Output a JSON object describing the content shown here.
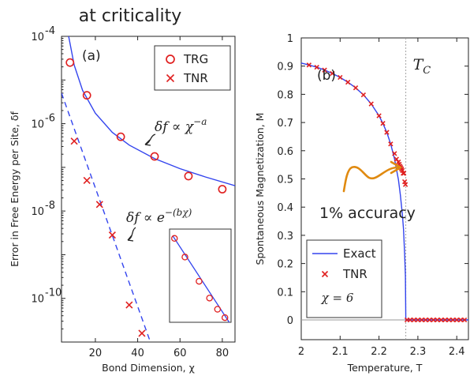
{
  "header_title": "at criticality",
  "colors": {
    "trg": "#e02020",
    "tnr": "#e02020",
    "fit": "#3344ee",
    "exact": "#3344ee",
    "orange": "#e08a10",
    "axis": "#222222",
    "box": "#333333"
  },
  "chart_data": [
    {
      "type": "scatter",
      "panel_label": "(a)",
      "xlabel": "Bond Dimension, χ",
      "ylabel": "Error in Free Energy per Site, δf",
      "xlim": [
        4,
        86
      ],
      "ylim_exponent": [
        -11,
        -4
      ],
      "y_scale": "log",
      "x_ticks": [
        20,
        40,
        60,
        80
      ],
      "x_tick_labels": [
        "20",
        "40",
        "60",
        "80"
      ],
      "y_ticks_exponent": [
        -10,
        -8,
        -6,
        -4
      ],
      "y_tick_labels": [
        "10",
        "10",
        "10",
        "10"
      ],
      "y_tick_exponent_labels": [
        "-10",
        "-8",
        "-6",
        "-4"
      ],
      "legend_position": "top-right",
      "legend": [
        {
          "name": "TRG",
          "marker": "circle"
        },
        {
          "name": "TNR",
          "marker": "x"
        }
      ],
      "series": [
        {
          "name": "TRG",
          "marker": "circle",
          "x": [
            8,
            16,
            32,
            48,
            64,
            80
          ],
          "log10_y": [
            -4.6,
            -5.35,
            -6.3,
            -6.75,
            -7.2,
            -7.5
          ]
        },
        {
          "name": "TNR",
          "marker": "x",
          "x": [
            10,
            16,
            22,
            28,
            36,
            42
          ],
          "log10_y": [
            -6.4,
            -7.3,
            -7.85,
            -8.55,
            -10.15,
            -10.8
          ]
        }
      ],
      "fits": [
        {
          "style": "solid",
          "x": [
            7,
            10,
            14,
            20,
            28,
            36,
            48,
            60,
            72,
            86
          ],
          "log10_y": [
            -3.9,
            -4.66,
            -5.24,
            -5.76,
            -6.2,
            -6.49,
            -6.8,
            -7.03,
            -7.22,
            -7.42
          ]
        },
        {
          "style": "dashed",
          "x": [
            4,
            46
          ],
          "log10_y": [
            -5.3,
            -11.0
          ]
        }
      ],
      "annotations": [
        {
          "text_parts": [
            "δf ∝ χ",
            "−a"
          ],
          "target_series": "TRG"
        },
        {
          "text_parts": [
            "δf ∝ e",
            "−(bχ)"
          ],
          "target_series": "TNR"
        }
      ],
      "inset": {
        "grid": "off",
        "points": [
          [
            0.08,
            0.1
          ],
          [
            0.25,
            0.3
          ],
          [
            0.48,
            0.56
          ],
          [
            0.65,
            0.74
          ],
          [
            0.78,
            0.86
          ],
          [
            0.9,
            0.95
          ]
        ],
        "line": [
          [
            0.05,
            0.07
          ],
          [
            0.97,
            1.0
          ]
        ]
      }
    },
    {
      "type": "line",
      "panel_label": "(b)",
      "xlabel": "Temperature, T",
      "ylabel": "Spontaneous Magnetization, M",
      "xlim": [
        2.0,
        2.43
      ],
      "ylim": [
        -0.07,
        1.0
      ],
      "x_ticks": [
        2.0,
        2.1,
        2.2,
        2.3,
        2.4
      ],
      "x_tick_labels": [
        "2",
        "2.1",
        "2.2",
        "2.3",
        "2.4"
      ],
      "y_ticks": [
        0,
        0.1,
        0.2,
        0.3,
        0.4,
        0.5,
        0.6,
        0.7,
        0.8,
        0.9,
        1.0
      ],
      "y_tick_labels": [
        "0",
        "0.1",
        "0.2",
        "0.3",
        "0.4",
        "0.5",
        "0.6",
        "0.7",
        "0.8",
        "0.9",
        "1"
      ],
      "critical_temperature": 2.269,
      "critical_label": "T",
      "critical_label_sub": "C",
      "annotation": "1% accuracy",
      "legend_position": "bottom-left",
      "legend": [
        {
          "name": "Exact",
          "marker": "line"
        },
        {
          "name": "TNR",
          "marker": "x"
        },
        {
          "name": "χ = 6",
          "marker": "none"
        }
      ],
      "series": [
        {
          "name": "Exact",
          "marker": "line",
          "x": [
            2.0,
            2.02,
            2.04,
            2.06,
            2.08,
            2.1,
            2.12,
            2.14,
            2.16,
            2.18,
            2.2,
            2.21,
            2.22,
            2.23,
            2.24,
            2.25,
            2.255,
            2.26,
            2.263,
            2.266,
            2.268,
            2.269,
            2.269,
            2.43
          ],
          "y": [
            0.911,
            0.904,
            0.896,
            0.886,
            0.874,
            0.86,
            0.843,
            0.823,
            0.798,
            0.766,
            0.724,
            0.697,
            0.665,
            0.624,
            0.571,
            0.496,
            0.443,
            0.375,
            0.321,
            0.234,
            0.156,
            0.0,
            0.0,
            0.0
          ]
        },
        {
          "name": "TNR",
          "marker": "x",
          "x": [
            2.02,
            2.04,
            2.06,
            2.08,
            2.1,
            2.12,
            2.14,
            2.16,
            2.18,
            2.2,
            2.21,
            2.22,
            2.23,
            2.24,
            2.245,
            2.25,
            2.252,
            2.254,
            2.256,
            2.258,
            2.26,
            2.262,
            2.264,
            2.266,
            2.268,
            2.272,
            2.28,
            2.29,
            2.3,
            2.31,
            2.32,
            2.33,
            2.34,
            2.35,
            2.36,
            2.37,
            2.38,
            2.39,
            2.4,
            2.41,
            2.42
          ],
          "y": [
            0.904,
            0.896,
            0.886,
            0.874,
            0.86,
            0.843,
            0.823,
            0.798,
            0.766,
            0.724,
            0.697,
            0.665,
            0.624,
            0.59,
            0.57,
            0.56,
            0.552,
            0.545,
            0.54,
            0.535,
            0.53,
            0.52,
            0.52,
            0.49,
            0.48,
            0.0,
            0.0,
            0.0,
            0.0,
            0.0,
            0.0,
            0.0,
            0.0,
            0.0,
            0.0,
            0.0,
            0.0,
            0.0,
            0.0,
            0.0,
            0.0
          ]
        }
      ]
    }
  ]
}
